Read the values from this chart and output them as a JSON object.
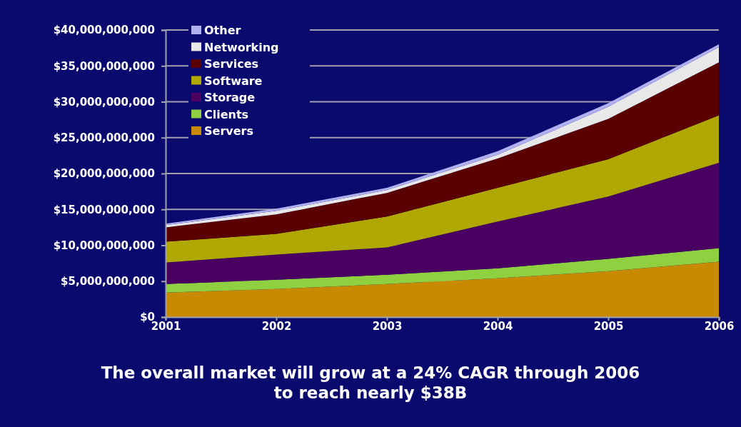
{
  "chart_data": {
    "type": "area",
    "stacked": true,
    "title": "The overall market will grow at a 24% CAGR through 2006\nto reach nearly $38B",
    "x": [
      2001,
      2002,
      2003,
      2004,
      2005,
      2006
    ],
    "xlim": [
      2001,
      2006
    ],
    "xticks": [
      2001,
      2002,
      2003,
      2004,
      2005,
      2006
    ],
    "ylim": [
      0,
      40000000000
    ],
    "yticks": [
      {
        "value": 0,
        "label": "$0"
      },
      {
        "value": 5000000000,
        "label": "$5,000,000,000"
      },
      {
        "value": 10000000000,
        "label": "$10,000,000,000"
      },
      {
        "value": 15000000000,
        "label": "$15,000,000,000"
      },
      {
        "value": 20000000000,
        "label": "$20,000,000,000"
      },
      {
        "value": 25000000000,
        "label": "$25,000,000,000"
      },
      {
        "value": 30000000000,
        "label": "$30,000,000,000"
      },
      {
        "value": 35000000000,
        "label": "$35,000,000,000"
      },
      {
        "value": 40000000000,
        "label": "$40,000,000,000"
      }
    ],
    "grid": "y",
    "legend": "top left",
    "series": [
      {
        "name": "Servers",
        "color": "#c88a00",
        "values": [
          3400000000,
          3900000000,
          4600000000,
          5400000000,
          6400000000,
          7700000000
        ]
      },
      {
        "name": "Clients",
        "color": "#8fd040",
        "values": [
          1200000000,
          1300000000,
          1300000000,
          1400000000,
          1700000000,
          1900000000
        ]
      },
      {
        "name": "Storage",
        "color": "#4a0060",
        "values": [
          3000000000,
          3500000000,
          3800000000,
          6500000000,
          8700000000,
          11900000000
        ]
      },
      {
        "name": "Software",
        "color": "#b0a800",
        "values": [
          2900000000,
          2900000000,
          4300000000,
          4700000000,
          5200000000,
          6600000000
        ]
      },
      {
        "name": "Services",
        "color": "#5a0000",
        "values": [
          2000000000,
          2700000000,
          3300000000,
          4100000000,
          5600000000,
          7400000000
        ]
      },
      {
        "name": "Networking",
        "color": "#e8e8e8",
        "values": [
          300000000,
          500000000,
          400000000,
          500000000,
          1700000000,
          2100000000
        ]
      },
      {
        "name": "Other",
        "color": "#b0b0f0",
        "values": [
          200000000,
          300000000,
          300000000,
          500000000,
          500000000,
          400000000
        ]
      }
    ]
  }
}
